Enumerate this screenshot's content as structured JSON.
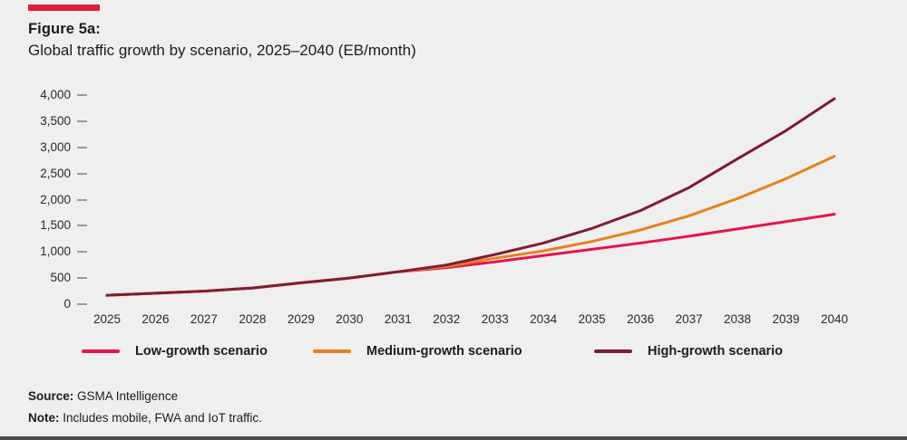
{
  "figure": {
    "label": "Figure 5a:",
    "title": "Global traffic growth by scenario, 2025–2040 (EB/month)"
  },
  "source": {
    "label": "Source:",
    "text": " GSMA Intelligence"
  },
  "note": {
    "label": "Note:",
    "text": " Includes mobile, FWA and IoT traffic."
  },
  "colors": {
    "accent_bar": "#e11c3f",
    "background": "#f0efef",
    "tick": "#9a9a9a",
    "text": "#1c1c1c",
    "bottom_border": "#4a4a4a"
  },
  "chart_data": {
    "type": "line",
    "title": "Global traffic growth by scenario, 2025–2040 (EB/month)",
    "unit": "EB/month",
    "x": [
      2025,
      2026,
      2027,
      2028,
      2029,
      2030,
      2031,
      2032,
      2033,
      2034,
      2035,
      2036,
      2037,
      2038,
      2039,
      2040
    ],
    "series": [
      {
        "name": "Low-growth scenario",
        "color": "#e6134c",
        "values": [
          170,
          210,
          250,
          310,
          410,
          500,
          620,
          700,
          810,
          930,
          1050,
          1170,
          1300,
          1440,
          1580,
          1720
        ]
      },
      {
        "name": "Medium-growth scenario",
        "color": "#e5821f",
        "values": [
          170,
          210,
          250,
          310,
          410,
          500,
          620,
          720,
          880,
          1020,
          1200,
          1420,
          1690,
          2020,
          2400,
          2830
        ]
      },
      {
        "name": "High-growth scenario",
        "color": "#7e1d33",
        "values": [
          170,
          210,
          250,
          310,
          410,
          500,
          620,
          750,
          950,
          1170,
          1450,
          1790,
          2230,
          2780,
          3320,
          3930
        ]
      }
    ],
    "ylim": [
      0,
      4000
    ],
    "yticks": [
      0,
      500,
      1000,
      1500,
      2000,
      2500,
      3000,
      3500,
      4000
    ],
    "grid": false,
    "legend_position": "bottom"
  }
}
